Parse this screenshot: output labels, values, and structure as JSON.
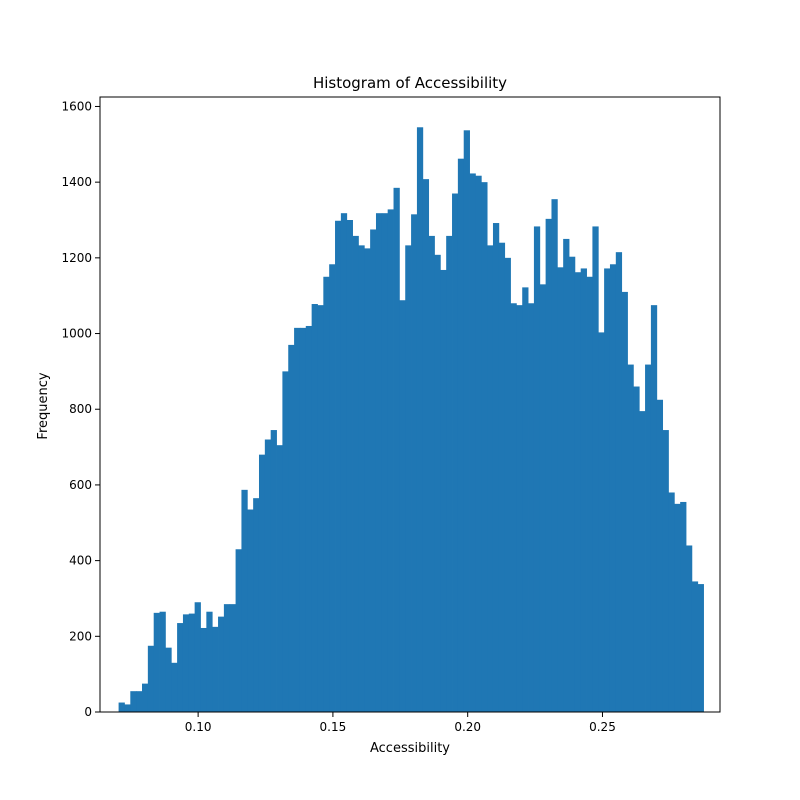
{
  "chart_data": {
    "type": "bar",
    "title": "Histogram of Accessibility",
    "xlabel": "Accessibility",
    "ylabel": "Frequency",
    "xlim": [
      0.0636,
      0.2936
    ],
    "ylim": [
      0,
      1625
    ],
    "x_ticks": [
      0.1,
      0.15,
      0.2,
      0.25
    ],
    "x_tick_labels": [
      "0.10",
      "0.15",
      "0.20",
      "0.25"
    ],
    "y_ticks": [
      0,
      200,
      400,
      600,
      800,
      1000,
      1200,
      1400,
      1600
    ],
    "y_tick_labels": [
      "0",
      "200",
      "400",
      "600",
      "800",
      "1000",
      "1200",
      "1400",
      "1600"
    ],
    "bin_start": 0.0705,
    "bin_width": 0.00217,
    "values": [
      25,
      20,
      55,
      55,
      75,
      175,
      262,
      265,
      170,
      130,
      235,
      258,
      260,
      290,
      222,
      265,
      225,
      252,
      285,
      285,
      430,
      587,
      535,
      565,
      680,
      720,
      745,
      705,
      900,
      970,
      1015,
      1015,
      1020,
      1078,
      1075,
      1150,
      1183,
      1298,
      1318,
      1300,
      1258,
      1233,
      1225,
      1275,
      1318,
      1318,
      1328,
      1385,
      1088,
      1233,
      1315,
      1545,
      1408,
      1258,
      1208,
      1168,
      1258,
      1370,
      1462,
      1537,
      1423,
      1417,
      1400,
      1233,
      1292,
      1240,
      1200,
      1080,
      1075,
      1122,
      1080,
      1283,
      1130,
      1303,
      1355,
      1175,
      1250,
      1203,
      1162,
      1172,
      1150,
      1283,
      1003,
      1172,
      1183,
      1215,
      1110,
      918,
      860,
      795,
      918,
      1075,
      825,
      745,
      580,
      550,
      555,
      440,
      345,
      338
    ],
    "colors": {
      "bar": "#1f77b4",
      "axes": "#000000",
      "background": "#ffffff"
    },
    "grid": false,
    "legend": "none"
  }
}
